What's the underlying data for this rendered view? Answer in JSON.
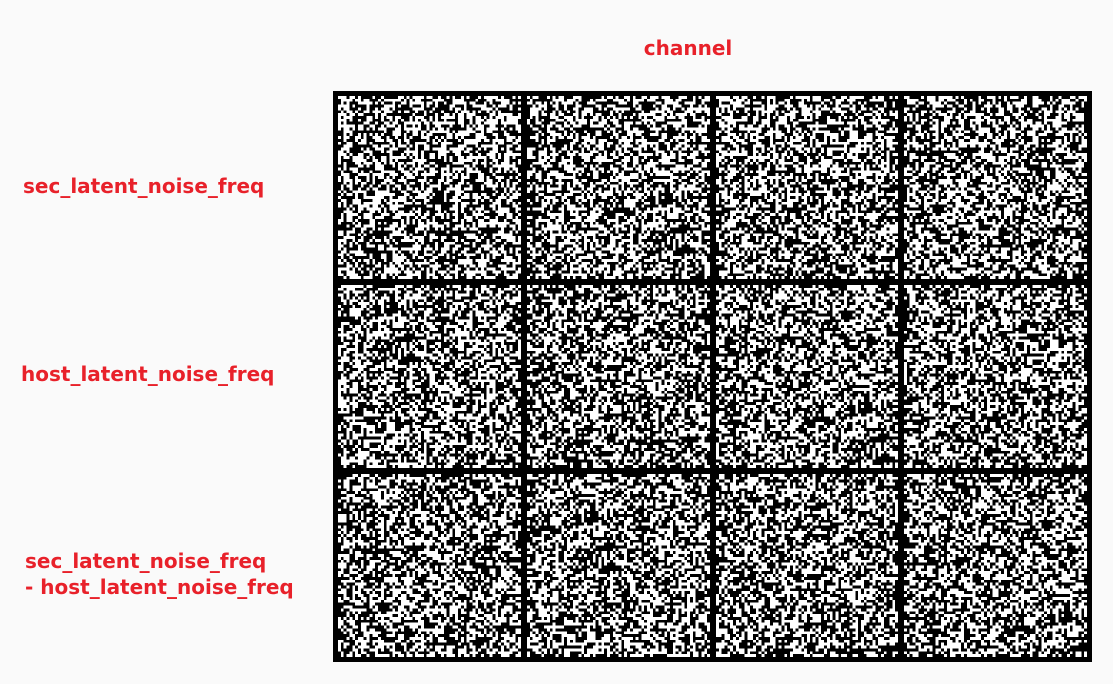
{
  "figure": {
    "column_title": "channel",
    "rows": [
      {
        "label_lines": [
          "sec_latent_noise_freq"
        ]
      },
      {
        "label_lines": [
          "host_latent_noise_freq"
        ]
      },
      {
        "label_lines": [
          "sec_latent_noise_freq",
          "- host_latent_noise_freq"
        ]
      }
    ],
    "columns": 4,
    "label_color": "#e8212a",
    "background": "#fafafa",
    "panel_content": "binary noise (black/white)"
  }
}
